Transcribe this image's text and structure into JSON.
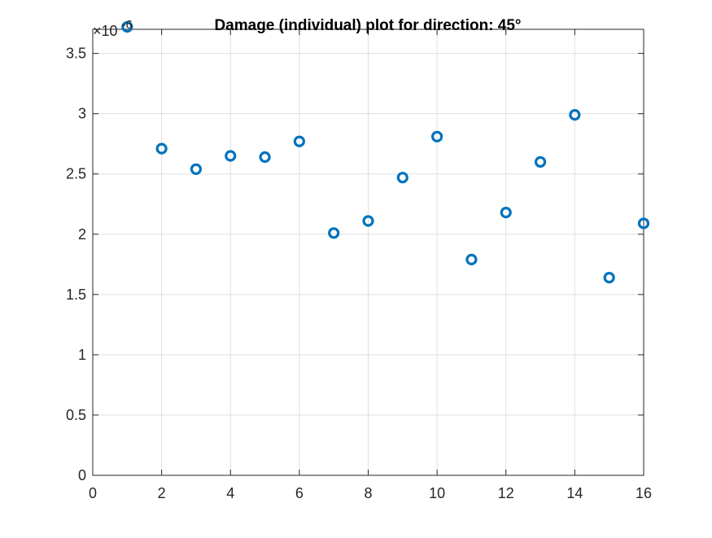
{
  "chart_data": {
    "type": "scatter",
    "title": "Damage (individual) plot for direction: 45°",
    "xlabel": "",
    "ylabel": "",
    "xlim": [
      0,
      16
    ],
    "ylim": [
      0,
      3.7
    ],
    "x_ticks": [
      0,
      2,
      4,
      6,
      8,
      10,
      12,
      14,
      16
    ],
    "x_tick_labels": [
      "0",
      "2",
      "4",
      "6",
      "8",
      "10",
      "12",
      "14",
      "16"
    ],
    "y_ticks": [
      0,
      0.5,
      1,
      1.5,
      2,
      2.5,
      3,
      3.5
    ],
    "y_tick_labels": [
      "0",
      "0.5",
      "1",
      "1.5",
      "2",
      "2.5",
      "3",
      "3.5"
    ],
    "y_multiplier": {
      "base": "×10",
      "exponent": "-6"
    },
    "grid": true,
    "marker": "circle-open",
    "series": [
      {
        "color": "#0072BD",
        "x": [
          1,
          2,
          3,
          4,
          5,
          6,
          7,
          8,
          9,
          10,
          11,
          12,
          13,
          14,
          15,
          16
        ],
        "y": [
          3.72,
          2.71,
          2.54,
          2.65,
          2.64,
          2.77,
          2.01,
          2.11,
          2.47,
          2.81,
          1.79,
          2.18,
          2.6,
          2.99,
          1.64,
          2.09
        ]
      }
    ],
    "colors": {
      "axis": "#262626",
      "grid": "#dfdfdf",
      "marker": "#0072BD"
    }
  }
}
